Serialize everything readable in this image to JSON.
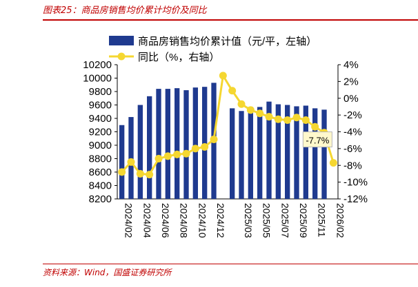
{
  "header": {
    "title": "图表25：商品房销售均价累计均价及同比"
  },
  "footer": {
    "source": "资料来源：Wind，国盛证券研究所"
  },
  "colors": {
    "bar": "#1f3a8f",
    "line": "#f5d731",
    "title": "#c00000",
    "callout_bg": "#fff8cc"
  },
  "chart_data": {
    "type": "bar",
    "categories": [
      "2024/02",
      "2024/03",
      "2024/04",
      "2024/05",
      "2024/06",
      "2024/07",
      "2024/08",
      "2024/09",
      "2024/10",
      "2024/11",
      "2024/12",
      "2025/01",
      "2025/02",
      "2025/03",
      "2025/04",
      "2025/05",
      "2025/06",
      "2025/07",
      "2025/08",
      "2025/09",
      "2025/10",
      "2025/11",
      "2025/12",
      "2026/02"
    ],
    "x_tick_labels": [
      "2024/02",
      "2024/04",
      "2024/06",
      "2024/08",
      "2024/10",
      "2024/12",
      "2025/03",
      "2025/05",
      "2025/07",
      "2025/09",
      "2025/11",
      "2026/02"
    ],
    "series": [
      {
        "name": "商品房销售均价累计值（元/平，左轴）",
        "type": "bar",
        "axis": "left",
        "values": [
          9300,
          9420,
          9600,
          9730,
          9840,
          9840,
          9850,
          9820,
          9860,
          9870,
          9930,
          null,
          9550,
          9510,
          9570,
          9570,
          9650,
          9610,
          9600,
          9580,
          9590,
          9550,
          9530,
          null
        ]
      },
      {
        "name": "同比（%，右轴）",
        "type": "line",
        "axis": "right",
        "values": [
          -8.8,
          -7.6,
          -9.0,
          -9.1,
          -7.2,
          -6.9,
          -6.7,
          -6.6,
          -6.0,
          -5.8,
          -4.9,
          2.7,
          0.9,
          -0.7,
          -1.4,
          -1.8,
          -2.2,
          -2.5,
          -2.6,
          -2.3,
          -2.6,
          -3.4,
          -4.1,
          -7.7
        ]
      }
    ],
    "left_axis": {
      "ylim": [
        8200,
        10200
      ],
      "ticks": [
        "8200",
        "8400",
        "8600",
        "8800",
        "9000",
        "9200",
        "9400",
        "9600",
        "9800",
        "10000",
        "10200"
      ]
    },
    "right_axis": {
      "ylim": [
        -12,
        4
      ],
      "ticks": [
        "-12%",
        "-10%",
        "-8%",
        "-6%",
        "-4%",
        "-2%",
        "0%",
        "2%",
        "4%"
      ]
    },
    "annotation": {
      "text": "-7.7%",
      "series": "同比（%，右轴）",
      "category": "2026/02"
    },
    "legend": {
      "placement": "top"
    },
    "grid": false
  }
}
